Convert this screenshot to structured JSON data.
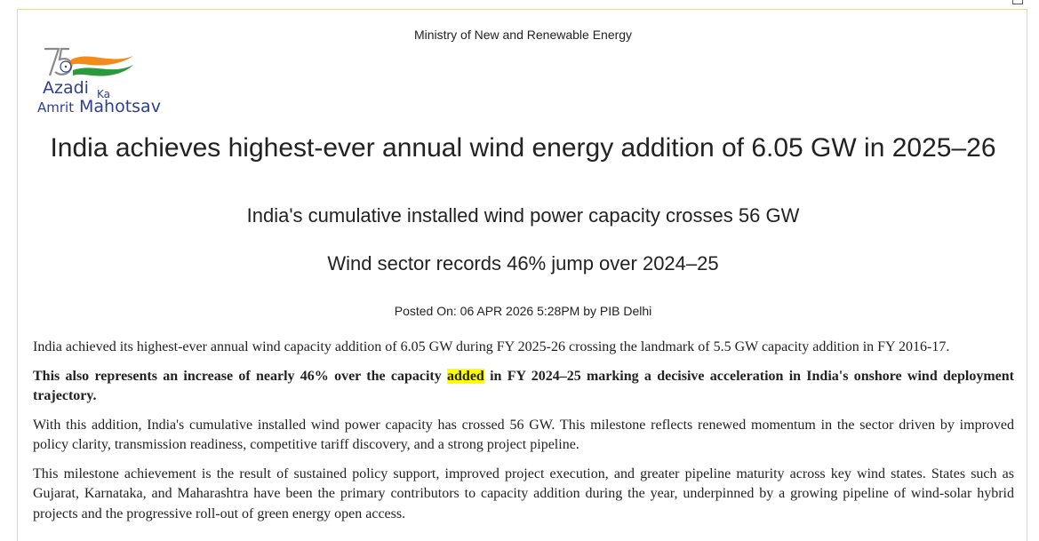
{
  "header": {
    "ministry": "Ministry of New and Renewable Energy"
  },
  "logo": {
    "number": "75",
    "line1": "Azadi",
    "line1_small": "Ka",
    "line2_small": "Amrit",
    "line2": "Mahotsav",
    "colors": {
      "saffron": "#f28b1c",
      "green": "#2a9a3c",
      "navy": "#2d3f8f",
      "grey": "#8a8a8a"
    }
  },
  "article": {
    "title": "India achieves highest-ever annual wind energy addition of 6.05 GW in 2025–26",
    "subtitle1": "India's cumulative installed wind power capacity crosses 56 GW",
    "subtitle2": "Wind sector records 46% jump over 2024–25",
    "posted": "Posted On: 06 APR 2026 5:28PM by PIB Delhi",
    "para1": "India achieved its highest-ever annual wind capacity addition of 6.05 GW during FY 2025-26 crossing the landmark of 5.5 GW capacity addition in FY 2016-17.",
    "para2_before": "This also represents an increase of nearly 46% over the capacity ",
    "para2_highlight": "added",
    "para2_after": " in FY 2024–25 marking a decisive acceleration in India's onshore wind deployment trajectory.",
    "para3": "With this addition, India's cumulative installed wind power capacity has crossed 56 GW. This milestone reflects renewed momentum in the sector driven by improved policy clarity, transmission readiness, competitive tariff discovery, and a strong project pipeline.",
    "para4": "This milestone achievement is the result of sustained policy support, improved project execution, and greater pipeline maturity across key wind states. States such as Gujarat, Karnataka, and Maharashtra have been the primary contributors to capacity addition during the year, underpinned by a growing pipeline of wind-solar hybrid projects and the progressive roll-out of green energy open access."
  },
  "colors": {
    "highlight": "#ffff00",
    "frame_border": "#e2d9a8"
  }
}
